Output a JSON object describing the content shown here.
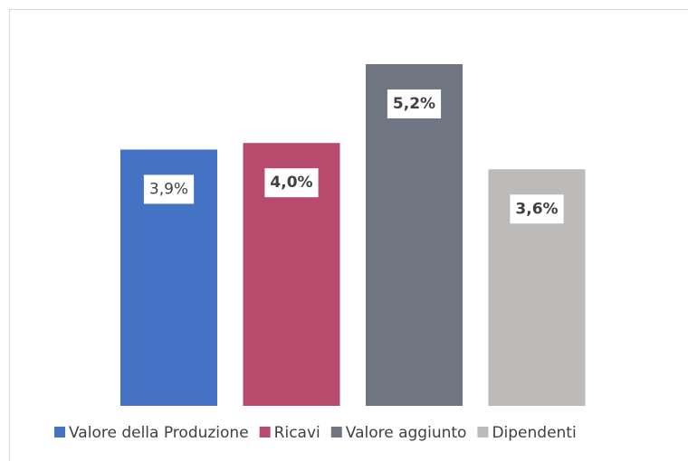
{
  "chart_data": {
    "type": "bar",
    "series": [
      {
        "name": "Valore della Produzione",
        "color": "#4472c4",
        "values": [
          3.9
        ],
        "value_labels": [
          "3,9%"
        ]
      },
      {
        "name": "Ricavi",
        "color": "#b84a6e",
        "values": [
          4.0
        ],
        "value_labels": [
          "4,0%"
        ]
      },
      {
        "name": "Valore aggiunto",
        "color": "#6f7682",
        "values": [
          5.2
        ],
        "value_labels": [
          "5,2%"
        ]
      },
      {
        "name": "Dipendenti",
        "color": "#bdbbba",
        "values": [
          3.6
        ],
        "value_labels": [
          "3,6%"
        ]
      }
    ],
    "legend": "bottom"
  }
}
